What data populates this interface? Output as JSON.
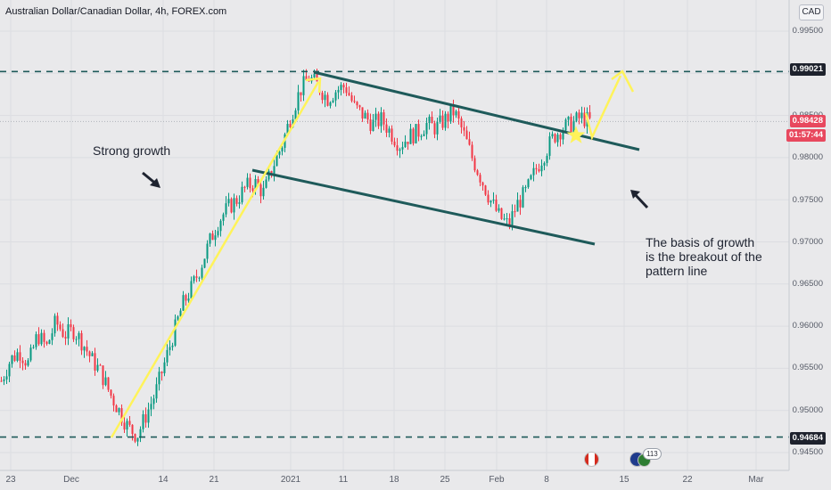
{
  "header": {
    "title": "Australian Dollar/Canadian Dollar, 4h, FOREX.com",
    "currency_badge": "CAD"
  },
  "annotations": {
    "strong_growth": "Strong growth",
    "basis_line1": "The basis of growth",
    "basis_line2": "is the breakout of the",
    "basis_line3": "pattern line"
  },
  "price_axis": {
    "ticks": [
      "0.99500",
      "0.98500",
      "0.98000",
      "0.97500",
      "0.97000",
      "0.96500",
      "0.96000",
      "0.95500",
      "0.95000",
      "0.94500"
    ],
    "labels": {
      "resistance": "0.99021",
      "current": "0.98428",
      "countdown": "01:57:44",
      "support": "0.94684"
    }
  },
  "time_axis": {
    "labels": [
      "23",
      "Dec",
      "14",
      "21",
      "2021",
      "11",
      "18",
      "25",
      "Feb",
      "8",
      "15",
      "22",
      "Mar"
    ]
  },
  "events": {
    "count_badge": "113"
  },
  "colors": {
    "up": "#089981",
    "down": "#f23645",
    "trend": "#1e5a5a",
    "arrow": "#fff35a",
    "background": "#e9e9eb"
  },
  "chart_data": {
    "type": "candlestick",
    "title": "Australian Dollar/Canadian Dollar, 4h, FOREX.com",
    "ylim": [
      0.944,
      0.998
    ],
    "key_levels": {
      "resistance": 0.99021,
      "support": 0.94684,
      "current": 0.98428
    },
    "price_path": [
      [
        0.9535,
        0.956
      ],
      [
        0.957,
        0.9555
      ],
      [
        0.959,
        0.9575
      ],
      [
        0.9605,
        0.959
      ],
      [
        0.9595,
        0.958
      ],
      [
        0.956,
        0.9545
      ],
      [
        0.952,
        0.95
      ],
      [
        0.948,
        0.947
      ],
      [
        0.9495,
        0.952
      ],
      [
        0.9555,
        0.959
      ],
      [
        0.9625,
        0.9645
      ],
      [
        0.967,
        0.97
      ],
      [
        0.9725,
        0.974
      ],
      [
        0.975,
        0.9765
      ],
      [
        0.977,
        0.9758
      ],
      [
        0.979,
        0.9815
      ],
      [
        0.985,
        0.988
      ],
      [
        0.9895,
        0.9885
      ],
      [
        0.987,
        0.988
      ],
      [
        0.9885,
        0.986
      ],
      [
        0.985,
        0.984
      ],
      [
        0.9845,
        0.983
      ],
      [
        0.9815,
        0.9825
      ],
      [
        0.983,
        0.984
      ],
      [
        0.9835,
        0.9845
      ],
      [
        0.9855,
        0.983
      ],
      [
        0.98,
        0.9775
      ],
      [
        0.975,
        0.973
      ],
      [
        0.972,
        0.9745
      ],
      [
        0.976,
        0.9785
      ],
      [
        0.9805,
        0.9825
      ],
      [
        0.9835,
        0.984
      ],
      [
        0.9848,
        0.9843
      ]
    ],
    "trend_lines": [
      {
        "x": [
          "2021-01-06",
          "2021-02-12"
        ],
        "y": [
          0.99,
          0.981
        ]
      },
      {
        "x": [
          "2020-12-29",
          "2021-02-12"
        ],
        "y": [
          0.9785,
          0.97
        ]
      }
    ]
  }
}
